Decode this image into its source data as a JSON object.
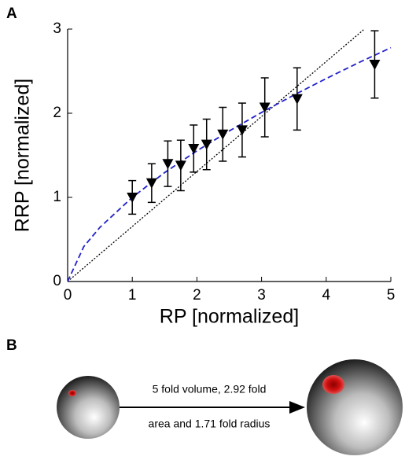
{
  "panels": [
    "A",
    "B"
  ],
  "chart_data": {
    "type": "scatter",
    "xlabel": "RP [normalized]",
    "ylabel": "RRP [normalized]",
    "xlim": [
      0,
      5
    ],
    "ylim": [
      0,
      3
    ],
    "xticks": [
      0,
      1,
      2,
      3,
      4,
      5
    ],
    "yticks": [
      0,
      1,
      2,
      3
    ],
    "points": {
      "color": "#000000",
      "marker": "triangle-down",
      "x": [
        1.0,
        1.3,
        1.55,
        1.75,
        1.95,
        2.15,
        2.4,
        2.7,
        3.05,
        3.55,
        4.75
      ],
      "values": [
        1.0,
        1.17,
        1.4,
        1.38,
        1.58,
        1.63,
        1.75,
        1.8,
        2.07,
        2.17,
        2.58
      ],
      "errors": [
        0.2,
        0.23,
        0.27,
        0.3,
        0.28,
        0.3,
        0.32,
        0.32,
        0.35,
        0.37,
        0.4
      ]
    },
    "lines": [
      {
        "color": "#000000",
        "style": "dotted",
        "x": [
          0,
          4.59
        ],
        "values": [
          0,
          3
        ]
      },
      {
        "color": "#2222cc",
        "style": "dashed",
        "x": [
          0,
          0.25,
          0.5,
          1,
          1.5,
          2,
          2.5,
          3,
          3.5,
          4,
          4.5,
          5
        ],
        "values": [
          0,
          0.415,
          0.644,
          1,
          1.294,
          1.553,
          1.789,
          2.009,
          2.216,
          2.412,
          2.6,
          2.779
        ]
      }
    ]
  },
  "diagram": {
    "label_line1": "5 fold volume, 2.92 fold",
    "label_line2": "area and 1.71 fold radius"
  }
}
